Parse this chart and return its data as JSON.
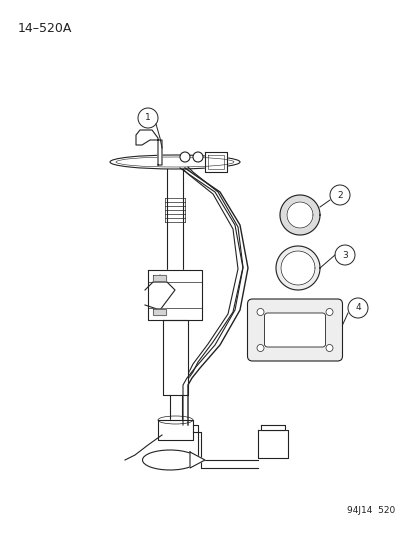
{
  "title": "14–520A",
  "footer": "94J14  520",
  "background_color": "#ffffff",
  "line_color": "#222222",
  "figsize": [
    4.14,
    5.33
  ],
  "dpi": 100
}
